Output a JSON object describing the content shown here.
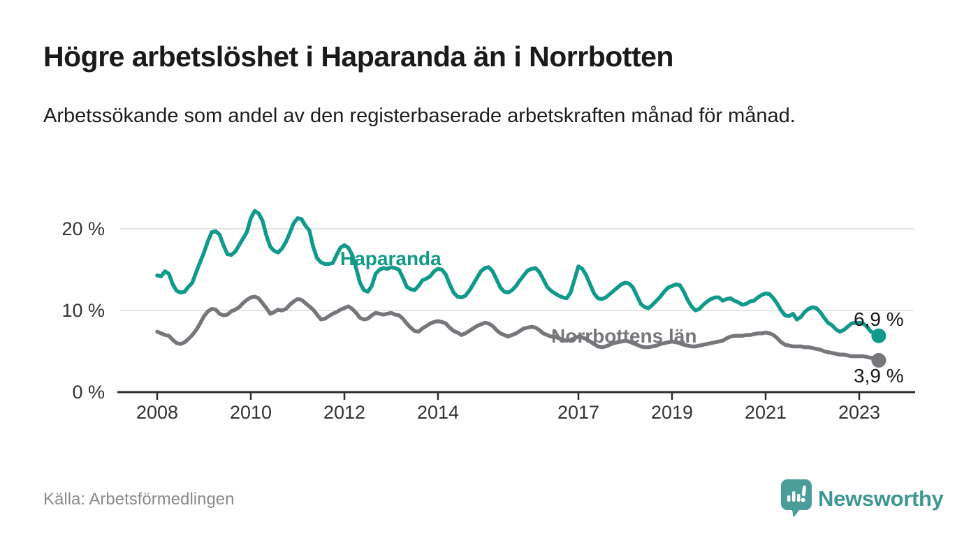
{
  "header": {
    "title": "Högre arbetslöshet i Haparanda än i Norrbotten",
    "subtitle": "Arbetssökande som andel av den registerbaserade arbetskraften månad för månad."
  },
  "footer": {
    "source": "Källa: Arbetsförmedlingen",
    "brand_name": "Newsworthy",
    "brand_icon": "bar-chart-speech-bubble-icon"
  },
  "colors": {
    "haparanda_line": "#119a8c",
    "norrbotten_line": "#77777b",
    "brand_icon": "#4b9d9a",
    "brand_text": "#3e9795",
    "gridline": "#dcdcdc",
    "axis": "#2e2e2e",
    "axis_label": "#333333",
    "value_label": "#1a1a1a",
    "source_text": "#8a8a8a"
  },
  "chart_data": {
    "type": "line",
    "title": "Högre arbetslöshet i Haparanda än i Norrbotten",
    "subtitle": "Arbetssökande som andel av den registerbaserade arbetskraften månad för månad.",
    "x_unit": "month",
    "x_start": "2008-01",
    "x_end": "2023-06",
    "ylim": [
      0,
      23.5
    ],
    "grid": "horizontal",
    "legend_position": "inline-labels",
    "y_axis": {
      "ticks": [
        {
          "value": 0,
          "label": "0 %"
        },
        {
          "value": 10,
          "label": "10 %"
        },
        {
          "value": 20,
          "label": "20 %"
        }
      ]
    },
    "x_axis": {
      "ticks": [
        {
          "year": 2008,
          "label": "2008"
        },
        {
          "year": 2010,
          "label": "2010"
        },
        {
          "year": 2012,
          "label": "2012"
        },
        {
          "year": 2014,
          "label": "2014"
        },
        {
          "year": 2017,
          "label": "2017"
        },
        {
          "year": 2019,
          "label": "2019"
        },
        {
          "year": 2021,
          "label": "2021"
        },
        {
          "year": 2023,
          "label": "2023"
        }
      ]
    },
    "series": [
      {
        "name": "Haparanda",
        "color": "#119a8c",
        "end_label": "6,9 %",
        "end_value": 6.9,
        "values": [
          14.3,
          14.2,
          14.8,
          14.5,
          13.2,
          12.4,
          12.2,
          12.3,
          12.9,
          13.4,
          14.7,
          15.9,
          17.1,
          18.5,
          19.6,
          19.7,
          19.3,
          18.0,
          16.9,
          16.8,
          17.2,
          18.0,
          18.8,
          19.6,
          21.3,
          22.2,
          21.9,
          21.0,
          19.2,
          17.8,
          17.3,
          17.1,
          17.6,
          18.4,
          19.5,
          20.7,
          21.3,
          21.2,
          20.4,
          19.8,
          17.8,
          16.4,
          15.9,
          15.7,
          15.7,
          15.8,
          16.8,
          17.7,
          18.0,
          17.7,
          16.8,
          15.2,
          13.4,
          12.5,
          12.3,
          13.0,
          14.5,
          15.0,
          15.2,
          15.1,
          15.3,
          15.2,
          15.0,
          14.0,
          12.9,
          12.6,
          12.5,
          13.0,
          13.7,
          13.9,
          14.2,
          14.8,
          15.1,
          15.0,
          14.4,
          13.2,
          12.2,
          11.7,
          11.6,
          11.8,
          12.4,
          13.2,
          14.0,
          14.8,
          15.2,
          15.3,
          14.8,
          13.8,
          12.8,
          12.3,
          12.2,
          12.5,
          13.0,
          13.7,
          14.3,
          14.9,
          15.1,
          15.2,
          14.7,
          13.8,
          12.9,
          12.4,
          12.1,
          11.8,
          11.6,
          11.5,
          12.2,
          13.8,
          15.4,
          15.1,
          14.3,
          13.2,
          12.1,
          11.5,
          11.4,
          11.6,
          12.0,
          12.4,
          12.8,
          13.2,
          13.4,
          13.3,
          12.8,
          11.8,
          10.8,
          10.4,
          10.3,
          10.7,
          11.2,
          11.7,
          12.3,
          12.8,
          13.0,
          13.2,
          13.1,
          12.3,
          11.3,
          10.5,
          10.0,
          10.2,
          10.7,
          11.1,
          11.4,
          11.6,
          11.6,
          11.2,
          11.4,
          11.5,
          11.2,
          11.0,
          10.7,
          10.8,
          11.1,
          11.2,
          11.6,
          11.9,
          12.1,
          12.0,
          11.5,
          10.8,
          10.0,
          9.4,
          9.3,
          9.6,
          8.9,
          9.2,
          9.8,
          10.2,
          10.4,
          10.3,
          9.8,
          9.1,
          8.5,
          8.2,
          7.7,
          7.4,
          7.6,
          8.0,
          8.4,
          8.5,
          8.5,
          8.4,
          8.0,
          7.4,
          7.2,
          6.9
        ]
      },
      {
        "name": "Norrbottens län",
        "color": "#77777b",
        "end_label": "3,9 %",
        "end_value": 3.9,
        "values": [
          7.4,
          7.2,
          7.0,
          6.9,
          6.4,
          6.0,
          5.9,
          6.1,
          6.5,
          7.0,
          7.6,
          8.4,
          9.3,
          9.9,
          10.2,
          10.1,
          9.6,
          9.4,
          9.5,
          9.9,
          10.1,
          10.4,
          10.9,
          11.3,
          11.6,
          11.7,
          11.5,
          10.9,
          10.3,
          9.6,
          9.8,
          10.1,
          10.0,
          10.2,
          10.7,
          11.1,
          11.4,
          11.3,
          10.9,
          10.5,
          10.1,
          9.5,
          8.9,
          9.0,
          9.3,
          9.6,
          9.8,
          10.1,
          10.3,
          10.5,
          10.2,
          9.7,
          9.1,
          8.9,
          9.0,
          9.4,
          9.7,
          9.6,
          9.5,
          9.6,
          9.7,
          9.5,
          9.4,
          9.0,
          8.4,
          7.9,
          7.5,
          7.4,
          7.8,
          8.1,
          8.4,
          8.6,
          8.7,
          8.6,
          8.4,
          7.9,
          7.5,
          7.3,
          7.0,
          7.2,
          7.5,
          7.8,
          8.1,
          8.3,
          8.5,
          8.4,
          8.1,
          7.6,
          7.2,
          7.0,
          6.8,
          7.0,
          7.2,
          7.5,
          7.8,
          7.9,
          8.0,
          7.9,
          7.6,
          7.2,
          7.0,
          6.8,
          6.8,
          6.6,
          6.4,
          6.3,
          6.4,
          6.6,
          6.8,
          6.7,
          6.5,
          6.2,
          5.9,
          5.6,
          5.5,
          5.6,
          5.8,
          6.0,
          6.1,
          6.2,
          6.3,
          6.2,
          6.0,
          5.8,
          5.6,
          5.5,
          5.5,
          5.6,
          5.7,
          5.9,
          6.0,
          6.1,
          6.2,
          6.1,
          6.0,
          5.8,
          5.7,
          5.6,
          5.6,
          5.7,
          5.8,
          5.9,
          6.0,
          6.1,
          6.2,
          6.3,
          6.6,
          6.8,
          6.9,
          6.9,
          6.9,
          7.0,
          7.0,
          7.1,
          7.2,
          7.2,
          7.3,
          7.2,
          7.0,
          6.6,
          6.1,
          5.8,
          5.7,
          5.6,
          5.6,
          5.6,
          5.5,
          5.5,
          5.4,
          5.3,
          5.2,
          5.0,
          4.9,
          4.8,
          4.7,
          4.6,
          4.6,
          4.5,
          4.4,
          4.4,
          4.4,
          4.4,
          4.3,
          4.2,
          4.2,
          3.9
        ]
      }
    ]
  }
}
